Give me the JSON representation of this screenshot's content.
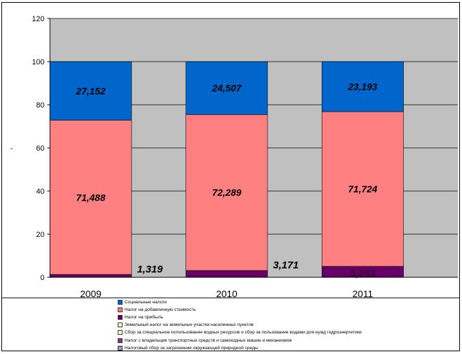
{
  "chart_data": {
    "type": "bar",
    "stacked": true,
    "categories": [
      "2009",
      "2010",
      "2011"
    ],
    "ylim": [
      0,
      120
    ],
    "yticks": [
      0,
      20,
      40,
      60,
      80,
      100,
      120
    ],
    "ylabel": "-",
    "grid": true,
    "series": [
      {
        "name": "Налог на прибыль",
        "values": [
          1.319,
          3.171,
          5.083
        ],
        "labels": [
          "1,319",
          "3,171",
          "5,083"
        ],
        "color": "#660066"
      },
      {
        "name": "Налог на добавленную стоимость",
        "values": [
          71.488,
          72.289,
          71.724
        ],
        "labels": [
          "71,488",
          "72,289",
          "71,724"
        ],
        "color": "#ff8080"
      },
      {
        "name": "Социальные налоги",
        "values": [
          27.152,
          24.507,
          23.193
        ],
        "labels": [
          "27,152",
          "24,507",
          "23,193"
        ],
        "color": "#0066cc"
      }
    ],
    "legend": [
      {
        "label": "Социальные налоги",
        "color": "#0066cc"
      },
      {
        "label": "Налог на добавленную стоимость",
        "color": "#ff8080"
      },
      {
        "label": "Налог на прибыль",
        "color": "#660066"
      },
      {
        "label": "Земельный налог на земельные участки населенных пунктов",
        "color": "#ffffcc"
      },
      {
        "label": "Сбор за специальное использование водных ресурсов и сбор за пользование водами для нужд гидроэнергетики",
        "color": "#ffffcc"
      },
      {
        "label": "Налог с владельцев транспортных средств и самоходных машин и механизмов",
        "color": "#993366"
      },
      {
        "label": "Налоговый сбор за загрязнение окружающей природной среды",
        "color": "#9999cc"
      }
    ],
    "legend_position": "bottom",
    "plot_background": "#c0c0c0"
  }
}
